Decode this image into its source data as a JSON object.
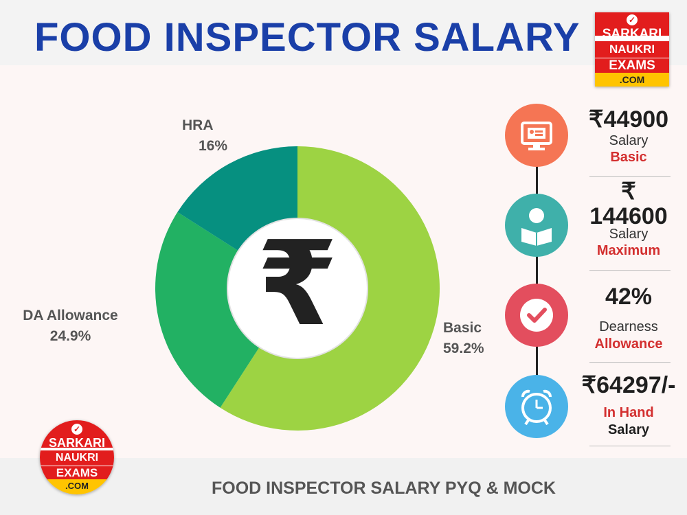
{
  "header": {
    "title": "FOOD INSPECTOR SALARY"
  },
  "logo": {
    "line1": "SARKARI",
    "line2": "NAUKRI",
    "line3": "EXAMS",
    "line4": ".COM"
  },
  "chart_data": {
    "type": "donut",
    "center_symbol": "₹",
    "slices": [
      {
        "label": "Basic",
        "value": 59.2,
        "display": "59.2%",
        "color": "#9dd343"
      },
      {
        "label": "DA Allowance",
        "value": 24.9,
        "display": "24.9%",
        "color": "#22b163"
      },
      {
        "label": "HRA",
        "value": 16,
        "display": "16%",
        "color": "#069080"
      }
    ]
  },
  "stats": [
    {
      "value": "₹44900",
      "line1": "Salary",
      "line2": "Basic",
      "icon": "monitor-id-card-icon",
      "color": "#f57554"
    },
    {
      "value_top": "₹",
      "value": "144600",
      "line1": "Salary",
      "line2": "Maximum",
      "icon": "reading-person-icon",
      "color": "#3fb0aa"
    },
    {
      "value": "42%",
      "line1": "Dearness",
      "line2": "Allowance",
      "icon": "checkmark-icon",
      "color": "#e34e5e"
    },
    {
      "value": "₹64297/-",
      "line1": "In Hand",
      "line2": "Salary",
      "icon": "alarm-clock-icon",
      "color": "#4ab3e8"
    }
  ],
  "footer": {
    "text": "FOOD INSPECTOR SALARY  PYQ & MOCK"
  }
}
